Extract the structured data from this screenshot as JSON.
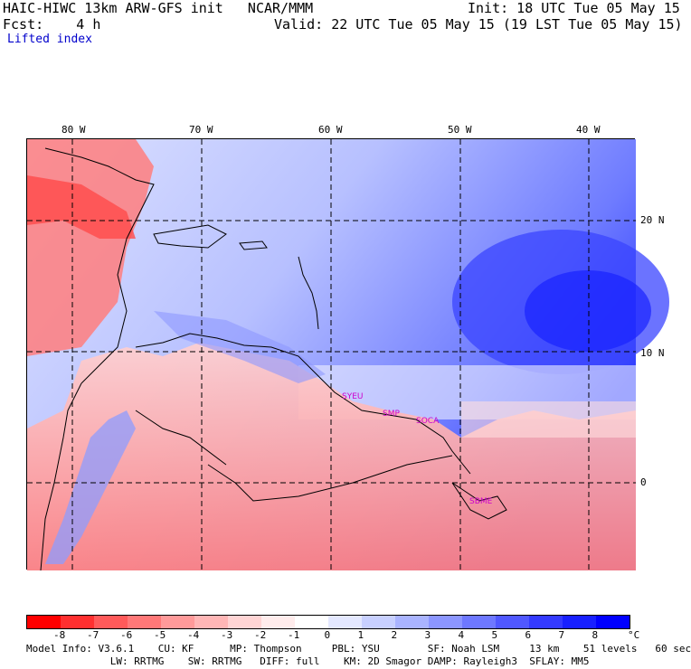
{
  "header": {
    "model_title": "HAIC-HIWC 13km ARW-GFS init   NCAR/MMM",
    "init": "Init: 18 UTC Tue 05 May 15",
    "fcst": "Fcst:    4 h",
    "valid": "Valid: 22 UTC Tue 05 May 15 (19 LST Tue 05 May 15)",
    "field": "Lifted index"
  },
  "map": {
    "lon_labels": [
      "80 W",
      "70 W",
      "60 W",
      "50 W",
      "40 W"
    ],
    "lat_labels": [
      "20 N",
      "10 N",
      "0"
    ],
    "stations": [
      "SYEU",
      "SMP",
      "SOCA",
      "SBME"
    ]
  },
  "colorbar": {
    "colors": [
      "#ff0000",
      "#ff3030",
      "#ff5a5a",
      "#ff7878",
      "#ff9a9a",
      "#ffb6b6",
      "#ffd4d4",
      "#ffecec",
      "#ffffff",
      "#e4e8ff",
      "#c8d0ff",
      "#aab4ff",
      "#8c96ff",
      "#6e78ff",
      "#5058ff",
      "#343aff",
      "#1820ff",
      "#0000ff"
    ],
    "labels": [
      "-8",
      "-7",
      "-6",
      "-5",
      "-4",
      "-3",
      "-2",
      "-1",
      "0",
      "1",
      "2",
      "3",
      "4",
      "5",
      "6",
      "7",
      "8"
    ],
    "unit": "°C"
  },
  "footer": {
    "line1": "Model Info: V3.6.1    CU: KF      MP: Thompson     PBL: YSU        SF: Noah LSM     13 km    51 levels   60 sec",
    "line2": "              LW: RRTMG    SW: RRTMG   DIFF: full    KM: 2D Smagor DAMP: Rayleigh3  SFLAY: MM5"
  }
}
